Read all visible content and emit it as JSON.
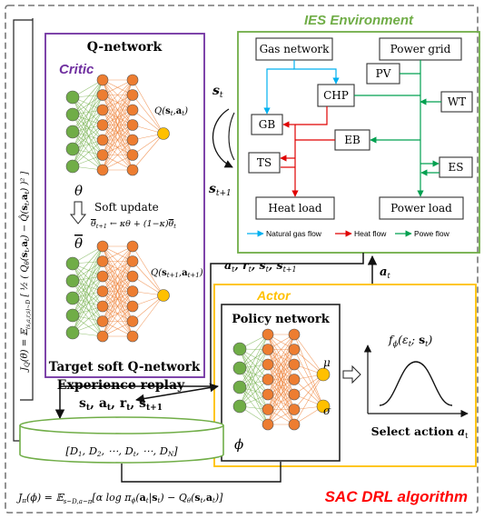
{
  "title": "SAC DRL algorithm",
  "colors": {
    "critic_border": "#7030a0",
    "ies_border": "#70ad47",
    "actor_border": "#ffc000",
    "red_text": "#ff0000",
    "gas_flow": "#00b0f0",
    "heat_flow": "#e00000",
    "power_flow": "#00a050",
    "node_green": "#70ad47",
    "node_orange": "#ed7d31",
    "node_yellow": "#ffc000"
  },
  "critic": {
    "label": "Critic",
    "q_network_title": "Q-network",
    "q_output": "Q(s_t, a_t)",
    "theta": "θ",
    "soft_update": "Soft update",
    "update_rule": "θ̄_{t+1} ← κθ + (1−κ) θ̄_t",
    "theta_bar": "θ̄",
    "target_output": "Q(s_{t+1}, a_{t+1})",
    "target_title": "Target soft Q-network"
  },
  "loss_q": "J_Q(θ) = E_{(s_t,a_t,r_t,s_{t+1})~D} [ ½ ( Q_θ(s_t,a_t) − Q̂(s_t,a_t) )² ]",
  "transition": {
    "state_t": "s_t",
    "state_t1": "s_{t+1}"
  },
  "ies": {
    "title": "IES Environment",
    "nodes": {
      "gas_network": "Gas network",
      "power_grid": "Power grid",
      "pv": "PV",
      "chp": "CHP",
      "wt": "WT",
      "gb": "GB",
      "eb": "EB",
      "ts": "TS",
      "es": "ES",
      "heat_load": "Heat load",
      "power_load": "Power load"
    },
    "legend": {
      "gas": "Natural gas flow",
      "heat": "Heat flow",
      "power": "Powe flow"
    }
  },
  "arrows": {
    "to_replay": "a_t, r_t, s_t, s_{t+1}",
    "action": "a_t"
  },
  "actor": {
    "label": "Actor",
    "policy_title": "Policy network",
    "phi": "ϕ",
    "mu": "μ",
    "sigma": "σ",
    "distribution": "f_ϕ(ε_t; s_t)",
    "select_action": "Select action a_t"
  },
  "replay": {
    "title": "Experience replay",
    "tuple": "s_t, a_t, r_t, s_{t+1}",
    "contents": "[D_1, D_2, ⋯, D_t, ⋯, D_N]"
  },
  "loss_pi": "J_π(ϕ) = E_{s_t~D, a_t~π_ϕ} [ α log π_ϕ(a_t|s_t) − Q_θ(s_t,a_t) ]"
}
